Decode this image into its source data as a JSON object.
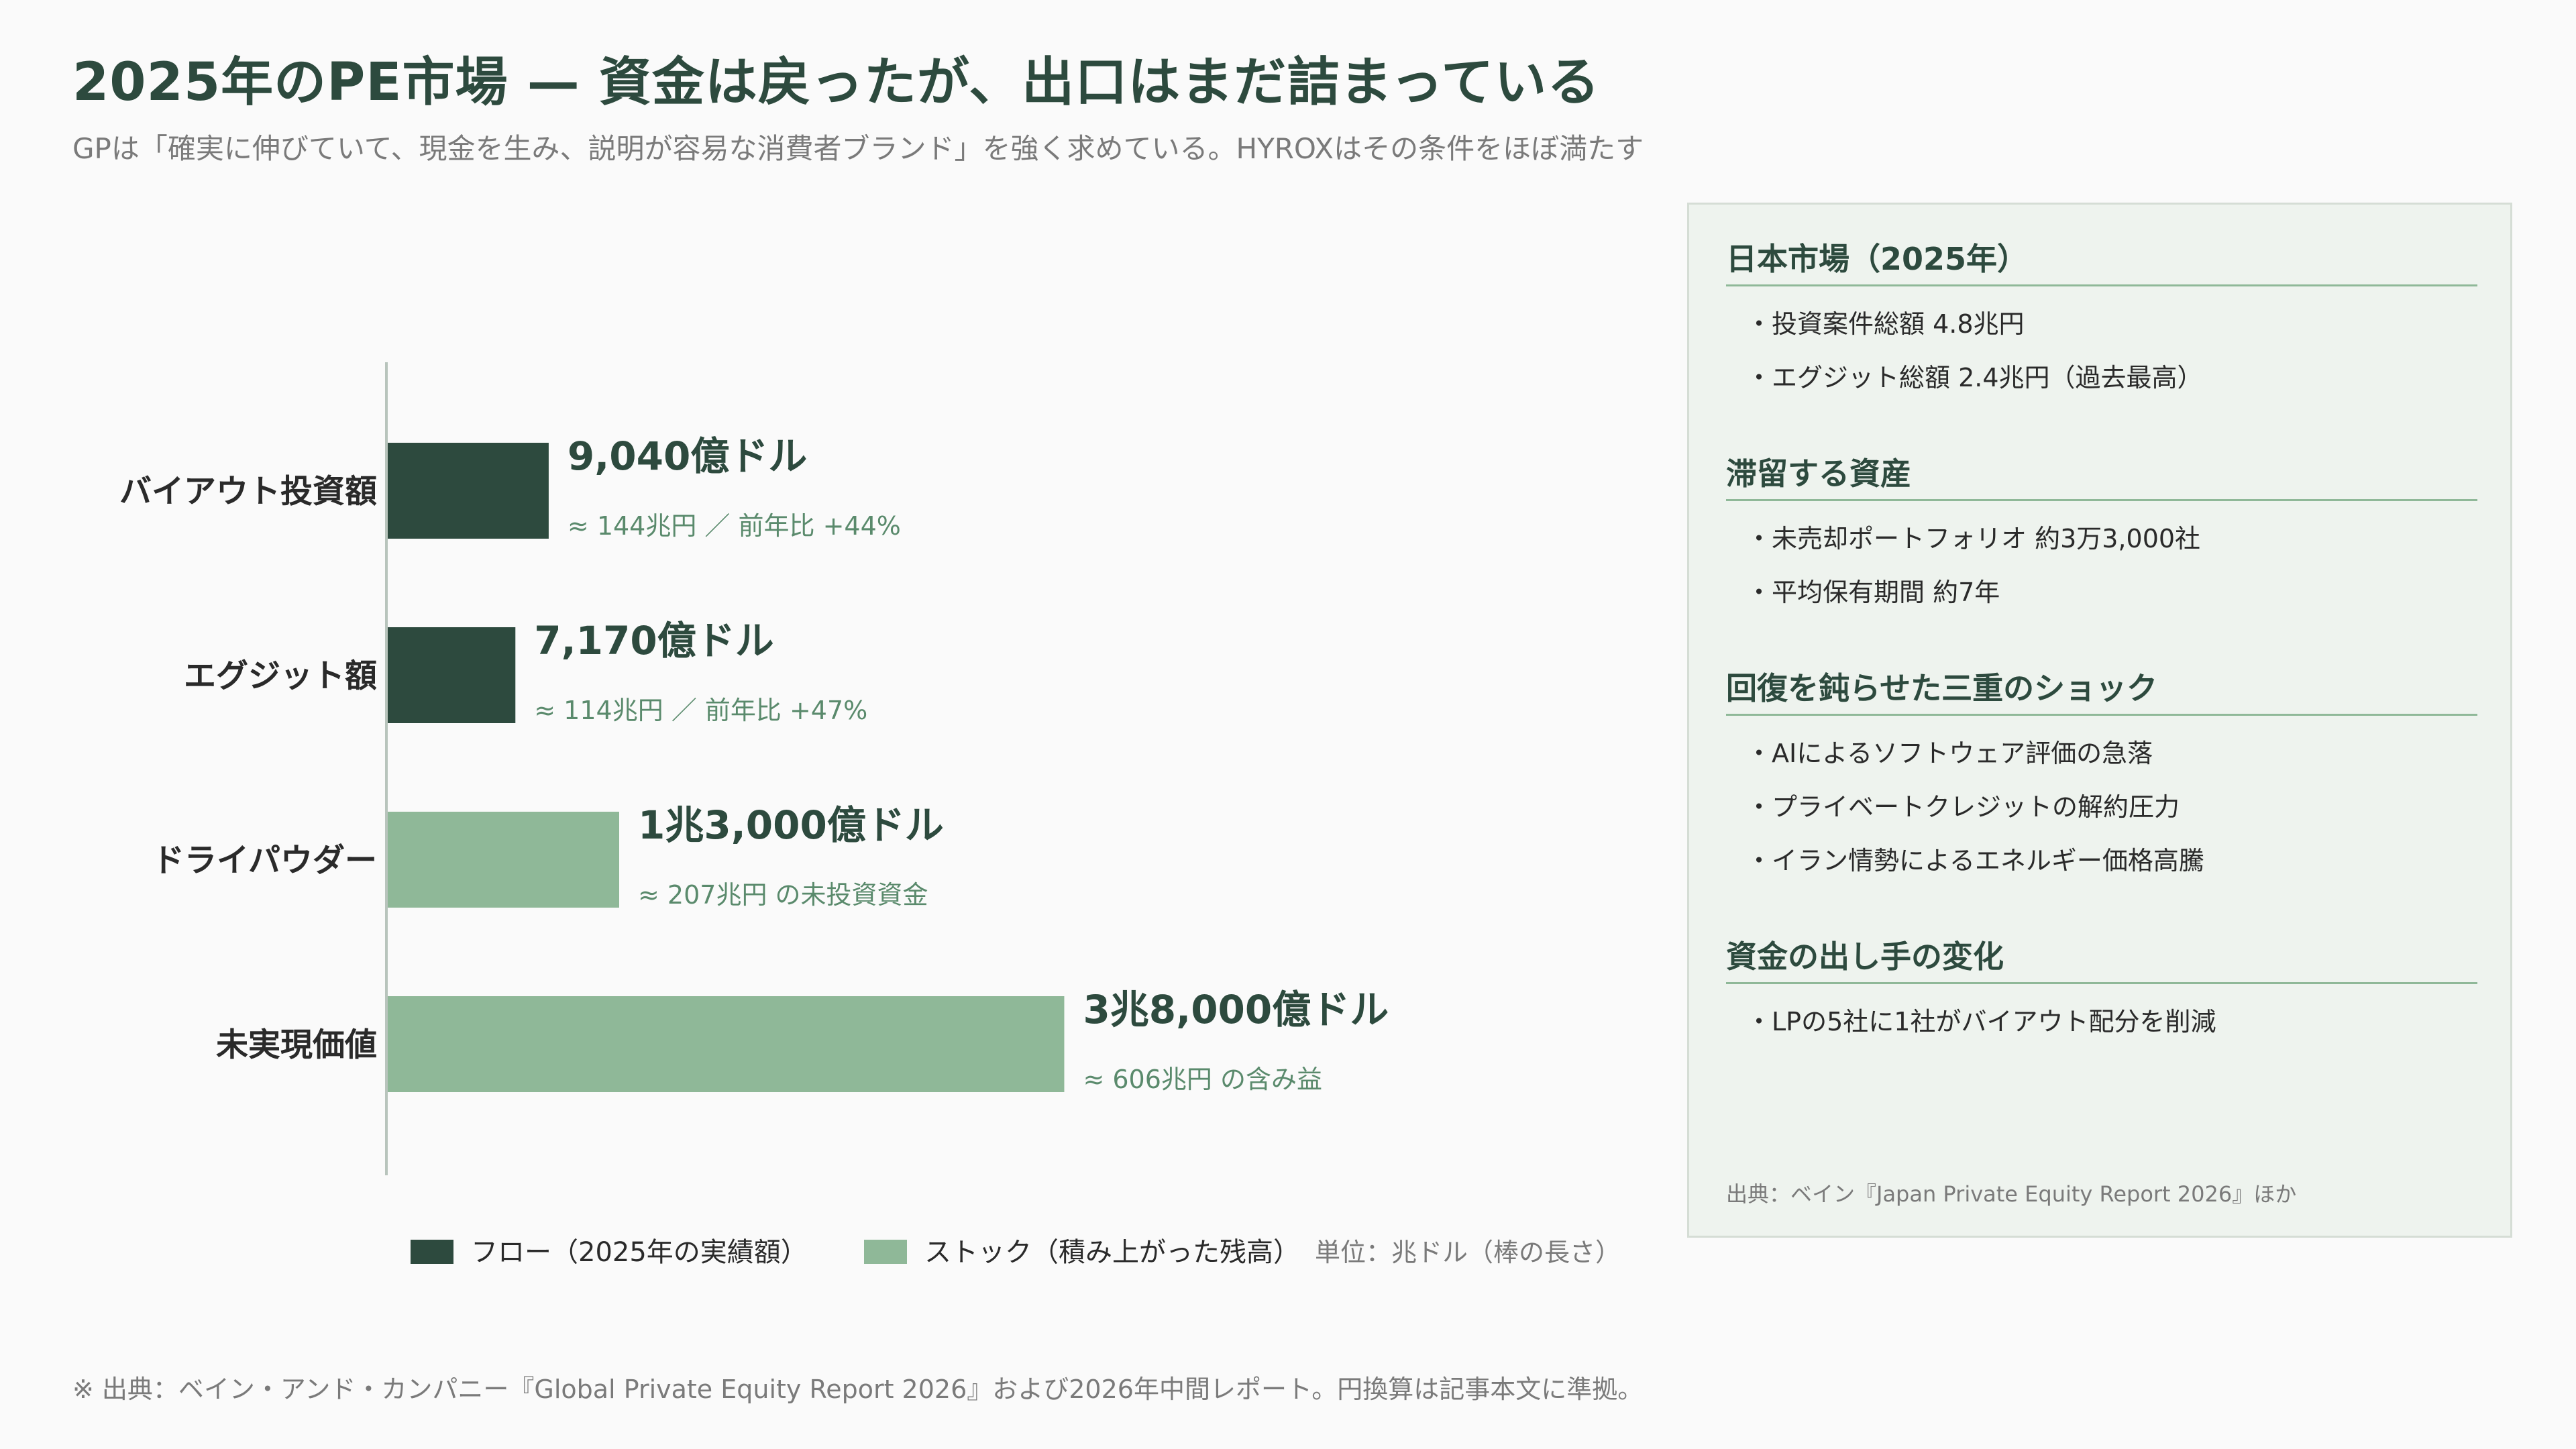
{
  "header": {
    "title": "2025年のPE市場 — 資金は戻ったが、出口はまだ詰まっている",
    "subtitle": "GPは「確実に伸びていて、現金を生み、説明が容易な消費者ブランド」を強く求めている。HYROXはその条件をほぼ満たす"
  },
  "colors": {
    "flow": "#2d4a3e",
    "stock": "#8fb898",
    "accent": "#2d4a3e",
    "axis": "#b8c4bc"
  },
  "chart_data": {
    "type": "bar",
    "orientation": "horizontal",
    "unit": "単位：兆ドル（棒の長さ）",
    "xlim": [
      0,
      5.2
    ],
    "categories": [
      "バイアウト投資額",
      "エグジット額",
      "ドライパウダー",
      "未実現価値"
    ],
    "values": [
      0.904,
      0.717,
      1.3,
      3.8
    ],
    "kinds": [
      "flow",
      "flow",
      "stock",
      "stock"
    ],
    "value_labels": [
      "9,040億ドル",
      "7,170億ドル",
      "1兆3,000億ドル",
      "3兆8,000億ドル"
    ],
    "sub_labels": [
      "≈ 144兆円 ／ 前年比 +44%",
      "≈ 114兆円 ／ 前年比 +47%",
      "≈ 207兆円 の未投資資金",
      "≈ 606兆円 の含み益"
    ],
    "legend": [
      {
        "kind": "flow",
        "label": "フロー（2025年の実績額）"
      },
      {
        "kind": "stock",
        "label": "ストック（積み上がった残高）"
      }
    ],
    "legend_position": "bottom"
  },
  "panel": {
    "sections": [
      {
        "heading": "日本市場（2025年）",
        "items": [
          "・投資案件総額 4.8兆円",
          "・エグジット総額 2.4兆円（過去最高）"
        ]
      },
      {
        "heading": "滞留する資産",
        "items": [
          "・未売却ポートフォリオ 約3万3,000社",
          "・平均保有期間 約7年"
        ]
      },
      {
        "heading": "回復を鈍らせた三重のショック",
        "items": [
          "・AIによるソフトウェア評価の急落",
          "・プライベートクレジットの解約圧力",
          "・イラン情勢によるエネルギー価格高騰"
        ]
      },
      {
        "heading": "資金の出し手の変化",
        "items": [
          "・LPの5社に1社がバイアウト配分を削減"
        ]
      }
    ],
    "source": "出典：ベイン『Japan Private Equity Report 2026』ほか"
  },
  "footnote": "※ 出典：ベイン・アンド・カンパニー『Global Private Equity Report 2026』および2026年中間レポート。円換算は記事本文に準拠。"
}
